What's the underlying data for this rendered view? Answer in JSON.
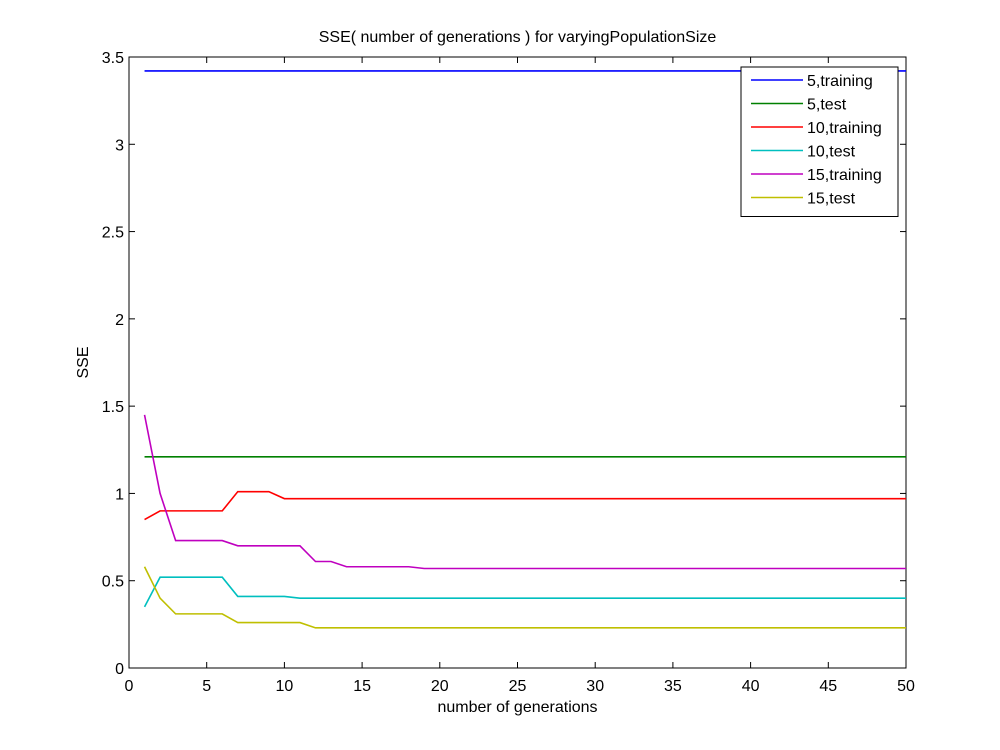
{
  "chart_data": {
    "type": "line",
    "title": "SSE( number of generations ) for varyingPopulationSize",
    "xlabel": "number of generations",
    "ylabel": "SSE",
    "xlim": [
      0,
      50
    ],
    "ylim": [
      0,
      3.5
    ],
    "xticks": [
      0,
      5,
      10,
      15,
      20,
      25,
      30,
      35,
      40,
      45,
      50
    ],
    "yticks": [
      0,
      0.5,
      1,
      1.5,
      2,
      2.5,
      3,
      3.5
    ],
    "xtick_labels": [
      "0",
      "5",
      "10",
      "15",
      "20",
      "25",
      "30",
      "35",
      "40",
      "45",
      "50"
    ],
    "ytick_labels": [
      "0",
      "0.5",
      "1",
      "1.5",
      "2",
      "2.5",
      "3",
      "3.5"
    ],
    "grid": false,
    "legend_position": "top-right",
    "series": [
      {
        "name": " 5,training",
        "color": "#0000ff",
        "x": [
          1,
          50
        ],
        "y": [
          3.42,
          3.42
        ]
      },
      {
        "name": " 5,test",
        "color": "#008000",
        "x": [
          1,
          50
        ],
        "y": [
          1.21,
          1.21
        ]
      },
      {
        "name": "10,training",
        "color": "#ff0000",
        "x": [
          1,
          2,
          3,
          4,
          5,
          6,
          7,
          8,
          9,
          10,
          11,
          50
        ],
        "y": [
          0.85,
          0.9,
          0.9,
          0.9,
          0.9,
          0.9,
          1.01,
          1.01,
          1.01,
          0.97,
          0.97,
          0.97
        ]
      },
      {
        "name": "10,test",
        "color": "#00bfbf",
        "x": [
          1,
          2,
          3,
          4,
          5,
          6,
          7,
          8,
          9,
          10,
          11,
          50
        ],
        "y": [
          0.35,
          0.52,
          0.52,
          0.52,
          0.52,
          0.52,
          0.41,
          0.41,
          0.41,
          0.41,
          0.4,
          0.4
        ]
      },
      {
        "name": "15,training",
        "color": "#bf00bf",
        "x": [
          1,
          2,
          3,
          4,
          5,
          6,
          7,
          8,
          9,
          10,
          11,
          12,
          13,
          14,
          15,
          16,
          17,
          18,
          19,
          50
        ],
        "y": [
          1.45,
          1.0,
          0.73,
          0.73,
          0.73,
          0.73,
          0.7,
          0.7,
          0.7,
          0.7,
          0.7,
          0.61,
          0.61,
          0.58,
          0.58,
          0.58,
          0.58,
          0.58,
          0.57,
          0.57
        ]
      },
      {
        "name": "15,test",
        "color": "#bfbf00",
        "x": [
          1,
          2,
          3,
          4,
          5,
          6,
          7,
          8,
          9,
          10,
          11,
          12,
          13,
          14,
          15,
          50
        ],
        "y": [
          0.58,
          0.4,
          0.31,
          0.31,
          0.31,
          0.31,
          0.26,
          0.26,
          0.26,
          0.26,
          0.26,
          0.23,
          0.23,
          0.23,
          0.23,
          0.23
        ]
      }
    ]
  }
}
